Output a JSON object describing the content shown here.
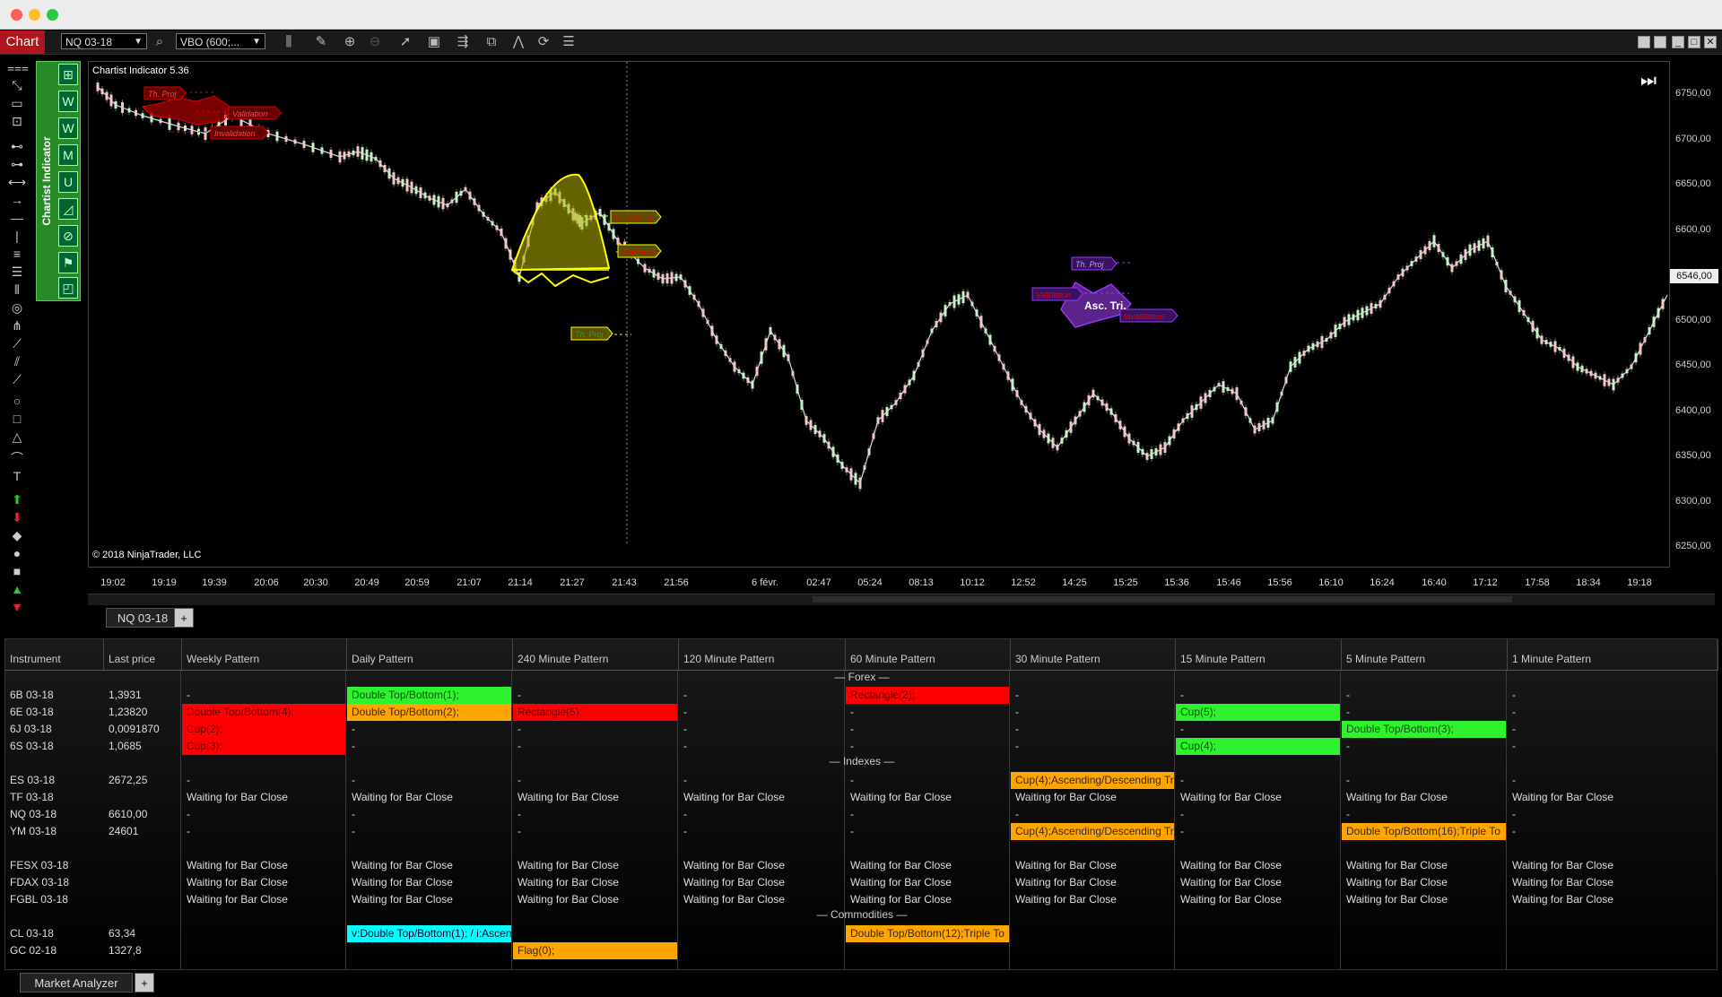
{
  "toolbar": {
    "chart_tab": "Chart",
    "instrument": "NQ 03-18",
    "indicator": "VBO (600;..."
  },
  "chart": {
    "title": "Chartist Indicator 5.36",
    "copyright": "© 2018 NinjaTrader, LLC",
    "panel_title": "Chartist Indicator",
    "price_labels": [
      "6750,00",
      "6700,00",
      "6650,00",
      "6600,00",
      "6550,00",
      "6500,00",
      "6450,00",
      "6400,00",
      "6350,00",
      "6300,00",
      "6250,00"
    ],
    "current_price": "6546,00",
    "time_labels": [
      "19:02",
      "19:19",
      "19:39",
      "20:06",
      "20:30",
      "20:49",
      "20:59",
      "21:07",
      "21:14",
      "21:27",
      "21:43",
      "21:56",
      "6 févr.",
      "02:47",
      "05:24",
      "08:13",
      "10:12",
      "12:52",
      "14:25",
      "15:25",
      "15:36",
      "15:46",
      "15:56",
      "16:10",
      "16:24",
      "16:40",
      "17:12",
      "17:58",
      "18:34",
      "19:18"
    ],
    "patterns": {
      "red": {
        "th_proj": "Th. Proj",
        "validation": "Validation",
        "invalidation": "Invalidation"
      },
      "yellow": {
        "th_proj": "Th. Proj",
        "validation": "Validation",
        "invalidation": "Invalidation"
      },
      "purple": {
        "th_proj": "Th. Proj",
        "validation": "Validation",
        "invalidation": "Invalidation",
        "name": "Asc. Tri."
      }
    },
    "colors": {
      "red": "#e00000",
      "yellow": "#ffff00",
      "purple": "#9933ff",
      "candle_up": "#c8f0c8",
      "candle_down": "#f0c8c8"
    }
  },
  "tabs": {
    "chart_tab": "NQ 03-18",
    "add": "+",
    "market_analyzer": "Market Analyzer"
  },
  "market_analyzer": {
    "columns": [
      "Instrument",
      "Last price",
      "Weekly Pattern",
      "Daily Pattern",
      "240 Minute Pattern",
      "120 Minute Pattern",
      "60 Minute Pattern",
      "30 Minute Pattern",
      "15 Minute Pattern",
      "5 Minute Pattern",
      "1 Minute Pattern"
    ],
    "sections": {
      "forex": "— Forex —",
      "indexes": "— Indexes —",
      "commodities": "— Commodities —"
    },
    "rows": [
      {
        "instrument": "6B 03-18",
        "price": "1,3931"
      },
      {
        "instrument": "6E 03-18",
        "price": "1,23820"
      },
      {
        "instrument": "6J 03-18",
        "price": "0,0091870"
      },
      {
        "instrument": "6S 03-18",
        "price": "1,0685"
      },
      {
        "instrument": "ES 03-18",
        "price": "2672,25"
      },
      {
        "instrument": "TF 03-18",
        "price": ""
      },
      {
        "instrument": "NQ 03-18",
        "price": "6610,00"
      },
      {
        "instrument": "YM 03-18",
        "price": "24601"
      },
      {
        "instrument": "FESX 03-18",
        "price": ""
      },
      {
        "instrument": "FDAX 03-18",
        "price": ""
      },
      {
        "instrument": "FGBL 03-18",
        "price": ""
      },
      {
        "instrument": "CL 03-18",
        "price": "63,34"
      },
      {
        "instrument": "GC 02-18",
        "price": "1327,8"
      }
    ],
    "dash": "-",
    "waiting": "Waiting for Bar Close",
    "cells": {
      "r0_daily": "Double Top/Bottom(1);",
      "r0_60": "Rectangle(2);",
      "r1_weekly": "Double Top/Bottom(4);",
      "r1_daily": "Double Top/Bottom(2);",
      "r1_240": "Rectangle(5);",
      "r1_15": "Cup(5);",
      "r2_weekly": "Cup(2);",
      "r2_5": "Double Top/Bottom(3);",
      "r3_weekly": "Cup(3);",
      "r3_15": "Cup(4);",
      "r4_30": "Cup(4);Ascending/Descending Tr",
      "r7_30": "Cup(4);Ascending/Descending Tr",
      "r7_5": "Double Top/Bottom(16);Triple To",
      "r11_daily": "v:Double Top/Bottom(1); / i:Ascen",
      "r11_60": "Double Top/Bottom(12);Triple To",
      "r12_240": "Flag(0);"
    }
  }
}
